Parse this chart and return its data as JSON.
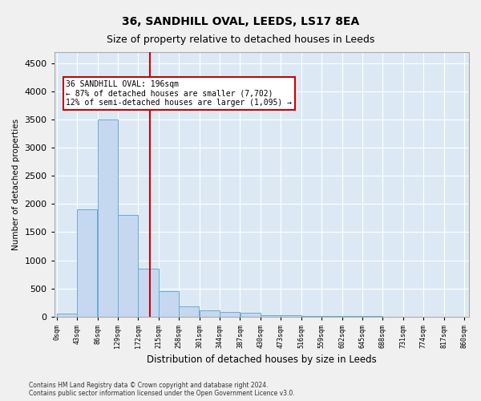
{
  "title1": "36, SANDHILL OVAL, LEEDS, LS17 8EA",
  "title2": "Size of property relative to detached houses in Leeds",
  "xlabel": "Distribution of detached houses by size in Leeds",
  "ylabel": "Number of detached properties",
  "bar_values": [
    50,
    1900,
    3500,
    1800,
    850,
    450,
    175,
    110,
    75,
    60,
    30,
    20,
    10,
    5,
    3,
    2,
    1,
    1,
    0,
    0
  ],
  "bin_labels": [
    "0sqm",
    "43sqm",
    "86sqm",
    "129sqm",
    "172sqm",
    "215sqm",
    "258sqm",
    "301sqm",
    "344sqm",
    "387sqm",
    "430sqm",
    "473sqm",
    "516sqm",
    "559sqm",
    "602sqm",
    "645sqm",
    "688sqm",
    "731sqm",
    "774sqm",
    "817sqm",
    "860sqm"
  ],
  "bar_color": "#c5d8f0",
  "bar_edge_color": "#6aaad4",
  "vline_color": "#cc0000",
  "vline_x": 196,
  "annotation_text": "36 SANDHILL OVAL: 196sqm\n← 87% of detached houses are smaller (7,702)\n12% of semi-detached houses are larger (1,095) →",
  "annotation_box_color": "#ffffff",
  "annotation_box_edge": "#cc0000",
  "ylim": [
    0,
    4700
  ],
  "yticks": [
    0,
    500,
    1000,
    1500,
    2000,
    2500,
    3000,
    3500,
    4000,
    4500
  ],
  "footnote1": "Contains HM Land Registry data © Crown copyright and database right 2024.",
  "footnote2": "Contains public sector information licensed under the Open Government Licence v3.0.",
  "fig_bg_color": "#f0f0f0",
  "plot_bg_color": "#dce9f5",
  "title1_fontsize": 10,
  "title2_fontsize": 9,
  "num_bins": 20,
  "bin_width": 43
}
